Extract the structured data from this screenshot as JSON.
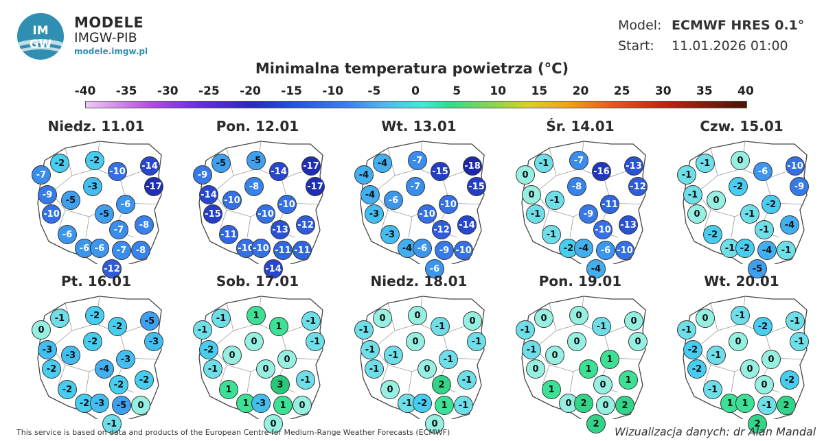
{
  "header": {
    "logo_text": "IMGW",
    "brand_line1": "MODELE",
    "brand_line2": "IMGW-PIB",
    "brand_url": "modele.imgw.pl",
    "model_label": "Model:",
    "model_value": "ECMWF HRES 0.1°",
    "start_label": "Start:",
    "start_value": "11.01.2026 01:00"
  },
  "title": "Minimalna temperatura powietrza (°C)",
  "colorbar": {
    "ticks": [
      "-40",
      "-35",
      "-30",
      "-25",
      "-20",
      "-15",
      "-10",
      "-5",
      "0",
      "5",
      "10",
      "15",
      "20",
      "25",
      "30",
      "35",
      "40"
    ],
    "range": [
      -40,
      40
    ],
    "colors": {
      "cold_extreme": "#f0c8f4",
      "violet": "#6a2fd8",
      "navy": "#2a2ab4",
      "blue": "#3a84ea",
      "cyan": "#48e6d8",
      "green": "#36d98e",
      "yellow": "#d9cf2a",
      "orange": "#f0a21e",
      "red": "#b8250f",
      "dark": "#4a1405"
    }
  },
  "panels": [
    {
      "day": "Niedz. 11.01",
      "values": [
        -2,
        -2,
        -7,
        -10,
        -14,
        -17,
        -9,
        -5,
        -3,
        -6,
        -10,
        -5,
        -8,
        -6,
        -7,
        -6,
        -6,
        -7,
        -8,
        -12
      ]
    },
    {
      "day": "Pon. 12.01",
      "values": [
        -5,
        -5,
        -9,
        -14,
        -17,
        -17,
        -14,
        -10,
        -8,
        -10,
        -15,
        -10,
        -12,
        -11,
        -13,
        -10,
        -10,
        -11,
        -11,
        -14
      ]
    },
    {
      "day": "Wt. 13.01",
      "values": [
        -4,
        -7,
        -4,
        -15,
        -18,
        -15,
        -4,
        -6,
        -7,
        -10,
        -3,
        -10,
        -14,
        -3,
        -12,
        -4,
        -6,
        -9,
        -10,
        -6
      ]
    },
    {
      "day": "Śr. 14.01",
      "values": [
        -1,
        -7,
        0,
        -16,
        -13,
        -12,
        0,
        -1,
        -8,
        -11,
        -1,
        -9,
        -13,
        -1,
        -10,
        -2,
        -4,
        -6,
        -10,
        -4
      ]
    },
    {
      "day": "Czw. 15.01",
      "values": [
        -1,
        0,
        -1,
        -6,
        -10,
        -9,
        -1,
        0,
        -2,
        -2,
        0,
        -1,
        -4,
        -2,
        -1,
        -1,
        -2,
        -4,
        -1,
        -5
      ]
    },
    {
      "day": "Pt. 16.01",
      "values": [
        -1,
        -2,
        0,
        -2,
        -5,
        -3,
        -3,
        -3,
        -2,
        -3,
        -2,
        -4,
        -2,
        -2,
        -2,
        -2,
        -3,
        -5,
        0,
        -1
      ]
    },
    {
      "day": "Sob. 17.01",
      "values": [
        -1,
        1,
        -1,
        1,
        -1,
        -1,
        -2,
        0,
        0,
        0,
        -1,
        0,
        -1,
        1,
        3,
        1,
        -3,
        1,
        0,
        0
      ]
    },
    {
      "day": "Niedz. 18.01",
      "values": [
        0,
        0,
        -1,
        -1,
        0,
        -1,
        -1,
        -1,
        0,
        -1,
        -1,
        0,
        -1,
        0,
        2,
        -1,
        -2,
        1,
        -1,
        0
      ]
    },
    {
      "day": "Pon. 19.01",
      "values": [
        0,
        0,
        -1,
        -1,
        0,
        0,
        -1,
        0,
        0,
        1,
        0,
        1,
        1,
        1,
        0,
        0,
        2,
        0,
        2,
        2
      ]
    },
    {
      "day": "Wt. 20.01",
      "values": [
        0,
        -1,
        -1,
        -2,
        -1,
        -1,
        -2,
        -1,
        0,
        0,
        -2,
        0,
        -2,
        -1,
        0,
        1,
        1,
        -1,
        2,
        2
      ]
    }
  ],
  "footer": {
    "left": "This service is based on data and products of the European Centre for Medium-Range Weather Forecasts (ECMWF)",
    "right": "Wizualizacja danych: dr Alan Mandal"
  }
}
